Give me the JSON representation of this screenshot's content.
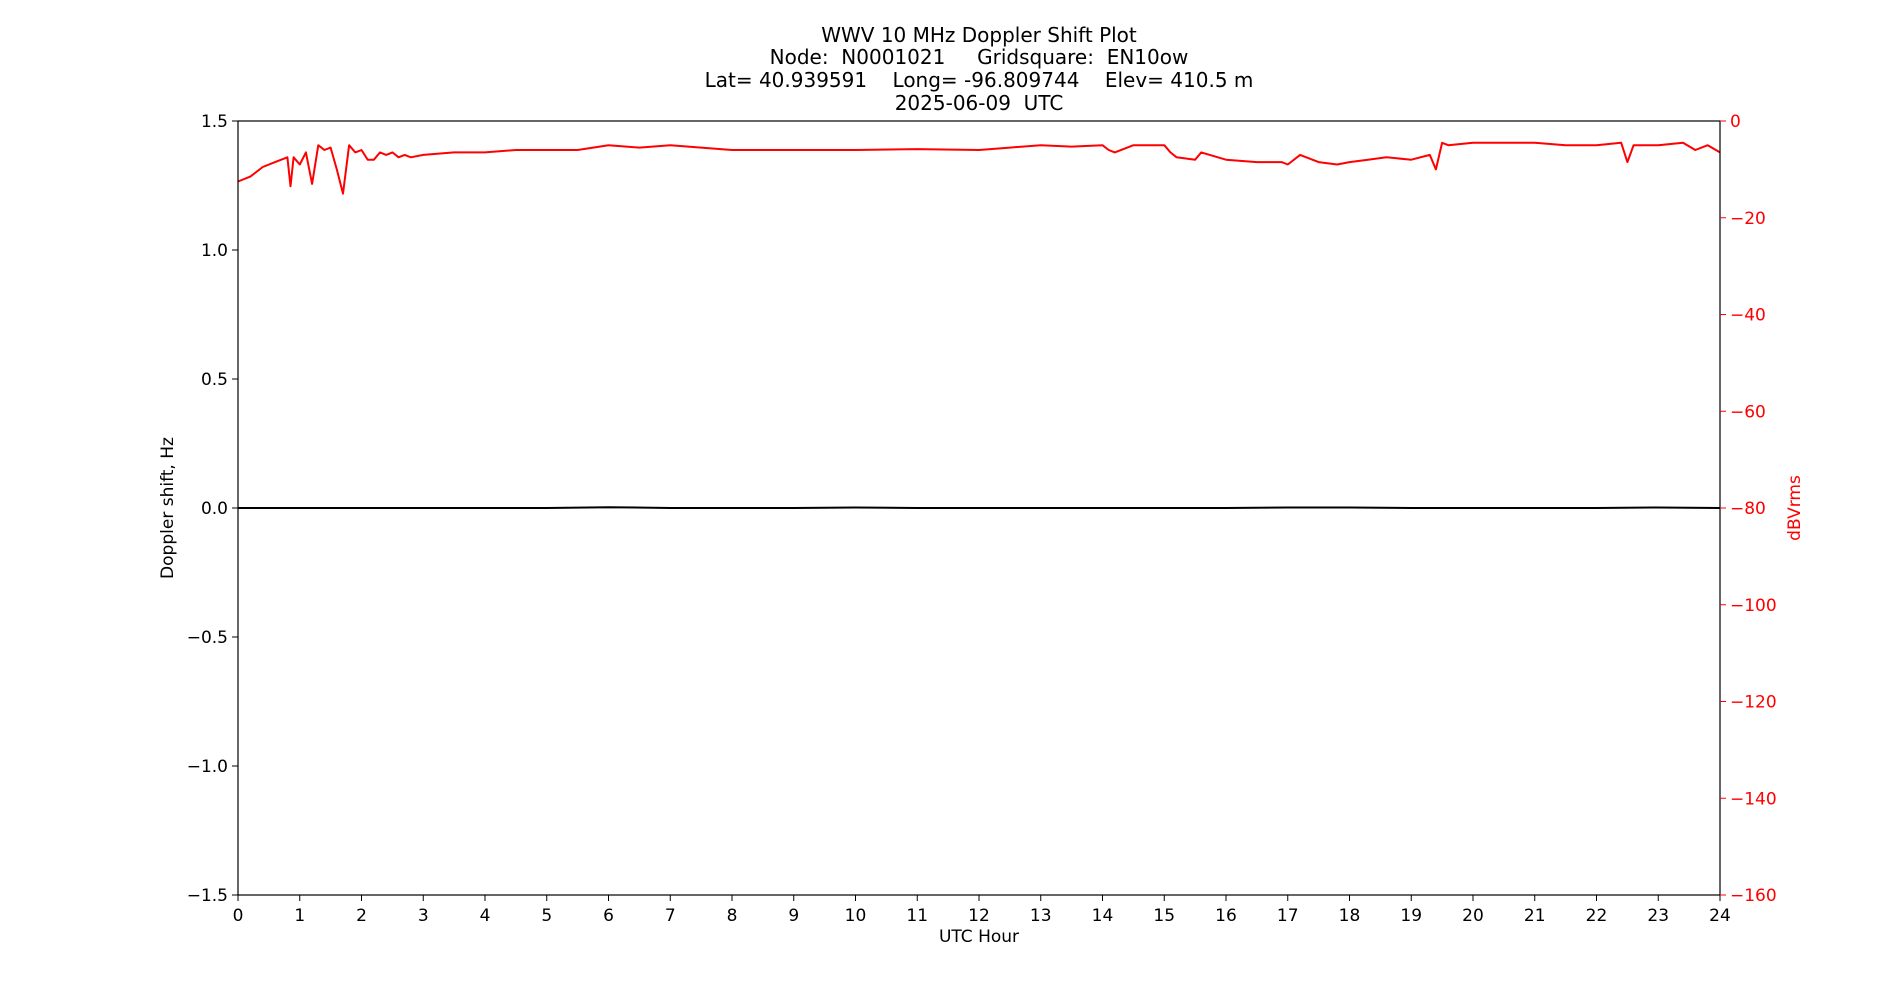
{
  "chart_data": {
    "type": "line",
    "title_lines": [
      "WWV 10 MHz Doppler Shift Plot",
      "Node:  N0001021     Gridsquare:  EN10ow",
      "Lat= 40.939591    Long= -96.809744    Elev= 410.5 m",
      "2025-06-09  UTC"
    ],
    "xlabel": "UTC Hour",
    "ylabel": "Doppler shift, Hz",
    "y2label": "dBVrms",
    "xlim": [
      0,
      24
    ],
    "ylim": [
      -1.5,
      1.5
    ],
    "y2lim": [
      -160,
      0
    ],
    "xticks": [
      "0",
      "1",
      "2",
      "3",
      "4",
      "5",
      "6",
      "7",
      "8",
      "9",
      "10",
      "11",
      "12",
      "13",
      "14",
      "15",
      "16",
      "17",
      "18",
      "19",
      "20",
      "21",
      "22",
      "23",
      "24"
    ],
    "yticks": [
      "1.5",
      "1.0",
      "0.5",
      "0.0",
      "−0.5",
      "−1.0",
      "−1.5"
    ],
    "y2ticks": [
      "0",
      "−20",
      "−40",
      "−60",
      "−80",
      "−100",
      "−120",
      "−140",
      "−160"
    ],
    "grid": false,
    "colors": {
      "doppler": "#000000",
      "power": "#ff0000",
      "axis2": "#ff0000"
    },
    "series": [
      {
        "axis": "left",
        "color": "#000000",
        "x": [
          0,
          1,
          2,
          3,
          4,
          5,
          6,
          7,
          8,
          9,
          10,
          11,
          12,
          13,
          14,
          15,
          16,
          17,
          18,
          19,
          20,
          21,
          22,
          23,
          24
        ],
        "y": [
          0.0,
          0.0,
          0.0,
          0.0,
          0.0,
          0.0,
          0.003,
          0.0,
          0.0,
          0.0,
          0.002,
          0.0,
          0.0,
          0.0,
          0.0,
          0.0,
          0.0,
          0.002,
          0.002,
          0.0,
          0.0,
          0.0,
          0.0,
          0.002,
          0.0
        ]
      },
      {
        "axis": "right",
        "color": "#ff0000",
        "x": [
          0.0,
          0.2,
          0.4,
          0.6,
          0.8,
          0.85,
          0.9,
          1.0,
          1.1,
          1.2,
          1.3,
          1.4,
          1.5,
          1.6,
          1.7,
          1.8,
          1.9,
          2.0,
          2.1,
          2.2,
          2.3,
          2.4,
          2.5,
          2.6,
          2.7,
          2.8,
          3.0,
          3.5,
          4.0,
          4.5,
          5.0,
          5.5,
          6.0,
          6.5,
          7.0,
          7.5,
          8.0,
          9.0,
          10.0,
          11.0,
          12.0,
          12.5,
          13.0,
          13.5,
          14.0,
          14.1,
          14.2,
          14.5,
          15.0,
          15.1,
          15.2,
          15.5,
          15.6,
          16.0,
          16.5,
          16.9,
          17.0,
          17.2,
          17.5,
          17.8,
          18.0,
          18.3,
          18.6,
          19.0,
          19.3,
          19.4,
          19.5,
          19.6,
          20.0,
          20.5,
          21.0,
          21.5,
          22.0,
          22.4,
          22.5,
          22.6,
          23.0,
          23.4,
          23.6,
          23.8,
          24.0
        ],
        "y": [
          -12.5,
          -11.5,
          -9.5,
          -8.5,
          -7.5,
          -13.5,
          -7.5,
          -9.0,
          -6.5,
          -13.0,
          -5.0,
          -6.0,
          -5.5,
          -10.0,
          -15.0,
          -5.0,
          -6.5,
          -6.0,
          -8.0,
          -8.0,
          -6.5,
          -7.0,
          -6.5,
          -7.5,
          -7.0,
          -7.5,
          -7.0,
          -6.5,
          -6.5,
          -6.0,
          -6.0,
          -6.0,
          -5.0,
          -5.5,
          -5.0,
          -5.5,
          -6.0,
          -6.0,
          -6.0,
          -5.8,
          -6.0,
          -5.5,
          -5.0,
          -5.3,
          -5.0,
          -6.0,
          -6.5,
          -5.0,
          -5.0,
          -6.5,
          -7.5,
          -8.0,
          -6.5,
          -8.0,
          -8.5,
          -8.5,
          -9.0,
          -7.0,
          -8.5,
          -9.0,
          -8.5,
          -8.0,
          -7.5,
          -8.0,
          -7.0,
          -10.0,
          -4.5,
          -5.0,
          -4.5,
          -4.5,
          -4.5,
          -5.0,
          -5.0,
          -4.5,
          -8.5,
          -5.0,
          -5.0,
          -4.5,
          -6.0,
          -5.0,
          -6.5
        ]
      }
    ]
  }
}
